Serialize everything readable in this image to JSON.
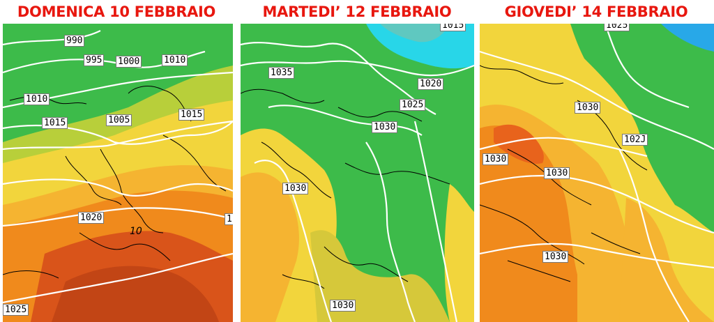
{
  "panels": [
    {
      "title": "DOMENICA 10 FEBBRAIO",
      "isobar_labels": [
        "990",
        "995",
        "1000",
        "1010",
        "1010",
        "1015",
        "1005",
        "1015",
        "1020",
        "1025",
        "1"
      ]
    },
    {
      "title": "MARTEDI’ 12 FEBBRAIO",
      "isobar_labels": [
        "1035",
        "1020",
        "1025",
        "1030",
        "1030",
        "1030",
        "1015"
      ]
    },
    {
      "title": "GIOVEDI’ 14 FEBBRAIO",
      "isobar_labels": [
        "1025",
        "1030",
        "1030",
        "1030",
        "102J",
        "1030"
      ]
    }
  ],
  "colors": {
    "title": "#e8170f",
    "low_green": "#3dbb4a",
    "cold_cyan": "#28d6e8",
    "mid_yellow": "#f2d53c",
    "warm_orange": "#f08a1c",
    "hot_red_orange": "#d9541a",
    "isobar": "#ffffff",
    "coastline": "#000000"
  },
  "legend": {
    "contour_label": "10"
  }
}
